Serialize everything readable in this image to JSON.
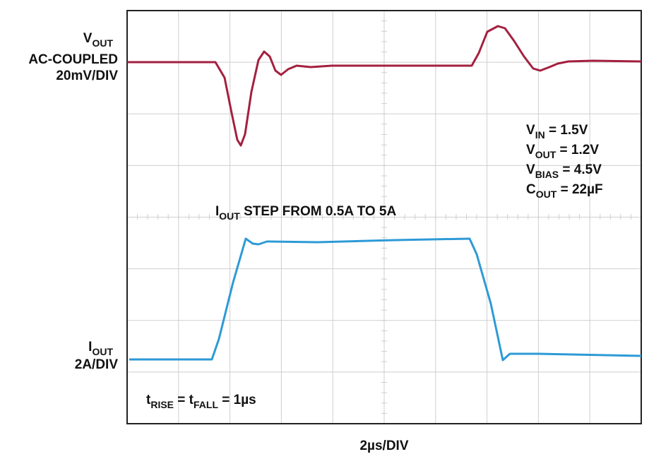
{
  "labels": {
    "vout_axis": {
      "name": [
        "V",
        "OUT"
      ],
      "coupling": "AC-COUPLED",
      "scale": "20mV/DIV"
    },
    "iout_axis": {
      "name": [
        "I",
        "OUT"
      ],
      "scale": "2A/DIV"
    },
    "conditions": [
      [
        "V",
        "IN",
        " = 1.5V"
      ],
      [
        "V",
        "OUT",
        " = 1.2V"
      ],
      [
        "V",
        "BIAS",
        " = 4.5V"
      ],
      [
        "C",
        "OUT",
        " = 22µF"
      ]
    ],
    "step": [
      "I",
      "OUT",
      " STEP FROM 0.5A TO 5A"
    ],
    "timing": [
      "t",
      "RISE",
      " = t",
      "FALL",
      " = 1µs"
    ],
    "x_scale": "2µs/DIV"
  }
}
